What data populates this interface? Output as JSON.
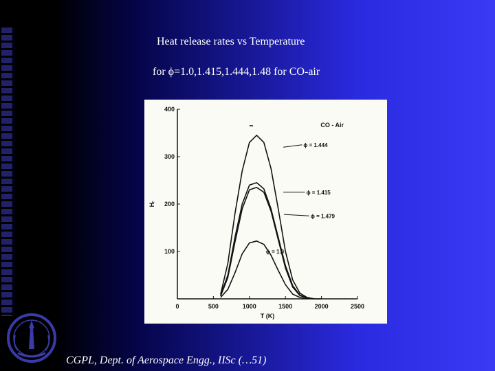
{
  "slide": {
    "title_line1": "Heat release rates vs Temperature",
    "title_line2": "for ϕ=1.0,1.415,1.444,1.48 for CO-air",
    "footer": "CGPL, Dept. of Aerospace Engg., IISc (…51)"
  },
  "colors": {
    "plot_background": "#fbfbf6",
    "ink": "#111111",
    "text": "#ffffff"
  },
  "icons": {
    "logo": "institute-emblem-icon"
  },
  "chart_data": {
    "type": "line",
    "title": "",
    "legend_label": "CO - Air",
    "xlabel": "T (K)",
    "ylabel": "Hᵣ",
    "xlim": [
      0,
      2500
    ],
    "ylim": [
      0,
      400
    ],
    "x_ticks": [
      0,
      500,
      1000,
      1500,
      2000,
      2500
    ],
    "x_tick_labels": [
      "0",
      "500",
      "1000",
      "1500",
      "2000",
      "2500"
    ],
    "y_ticks": [
      100,
      200,
      300,
      400
    ],
    "y_tick_labels": [
      "100",
      "200",
      "300",
      "400"
    ],
    "grid": false,
    "series": [
      {
        "name": "ϕ = 1.444",
        "x": [
          600,
          700,
          800,
          900,
          1000,
          1100,
          1200,
          1300,
          1400,
          1500,
          1600,
          1700,
          1800,
          1900,
          2000
        ],
        "y": [
          10,
          75,
          180,
          270,
          330,
          345,
          330,
          275,
          190,
          100,
          40,
          12,
          3,
          0,
          0
        ]
      },
      {
        "name": "ϕ = 1.415",
        "x": [
          600,
          700,
          800,
          900,
          1000,
          1100,
          1200,
          1300,
          1400,
          1500,
          1600,
          1700,
          1800,
          1900
        ],
        "y": [
          8,
          50,
          130,
          200,
          240,
          245,
          232,
          190,
          130,
          70,
          28,
          8,
          2,
          0
        ]
      },
      {
        "name": "ϕ = 1.479",
        "x": [
          600,
          700,
          800,
          900,
          1000,
          1100,
          1200,
          1300,
          1400,
          1500,
          1600,
          1700,
          1800,
          1900
        ],
        "y": [
          6,
          45,
          120,
          190,
          230,
          235,
          225,
          185,
          125,
          65,
          25,
          7,
          2,
          0
        ]
      },
      {
        "name": "ϕ = 1.0",
        "x": [
          600,
          700,
          800,
          900,
          1000,
          1100,
          1200,
          1300,
          1400,
          1500,
          1600,
          1700,
          1800
        ],
        "y": [
          3,
          20,
          55,
          95,
          118,
          122,
          115,
          92,
          60,
          30,
          10,
          3,
          0
        ]
      }
    ]
  }
}
